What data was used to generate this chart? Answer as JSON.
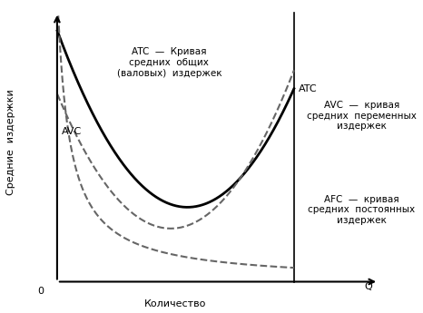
{
  "ylabel": "Средние  издержки",
  "xlabel": "Количество",
  "q_label": "Q",
  "zero_label": "0",
  "atc_label": "ATC",
  "avc_label_left": "AVC",
  "atc_annotation": "ATC  —  Кривая\nсредних  общих\n(валовых)  издержек",
  "avc_annotation": "AVC  —  кривая\nсредних  переменных\nиздержек",
  "afc_annotation": "AFC  —  кривая\nсредних  постоянных\nиздержек",
  "bg_color": "#ffffff",
  "curve_color_atc": "#000000",
  "curve_color_avc": "#666666",
  "curve_color_afc": "#666666",
  "axis_color": "#000000",
  "text_color": "#000000"
}
